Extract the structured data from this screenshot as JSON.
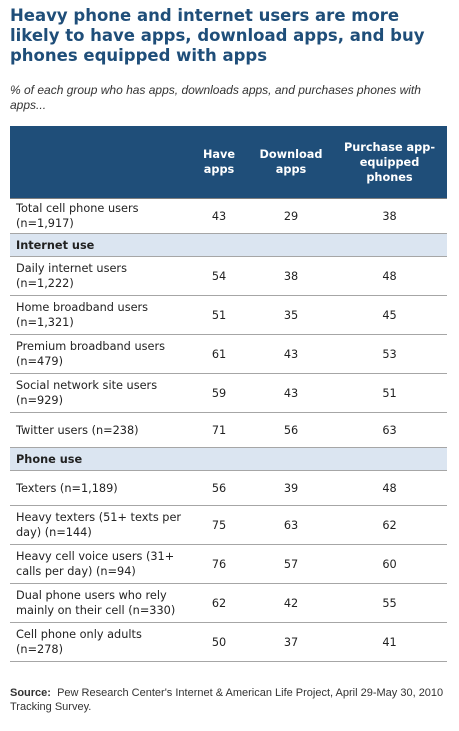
{
  "title": "Heavy phone and internet users are more likely to have apps, download apps, and buy phones equipped with apps",
  "subtitle": "% of each group who has apps, downloads apps, and purchases phones with apps...",
  "source_label": "Source:",
  "source_text": "Pew Research Center's Internet & American Life Project, April 29-May 30, 2010 Tracking Survey.",
  "chart_data": {
    "type": "table",
    "columns": [
      "",
      "Have apps",
      "Download apps",
      "Purchase app-equipped phones"
    ],
    "rows": [
      {
        "label": "Total cell phone users (n=1,917)",
        "values": [
          43,
          29,
          38
        ]
      },
      {
        "section": "Internet use"
      },
      {
        "label": "Daily internet users (n=1,222)",
        "values": [
          54,
          38,
          48
        ]
      },
      {
        "label": "Home broadband users (n=1,321)",
        "values": [
          51,
          35,
          45
        ]
      },
      {
        "label": "Premium broadband users (n=479)",
        "values": [
          61,
          43,
          53
        ]
      },
      {
        "label": "Social network site users (n=929)",
        "values": [
          59,
          43,
          51
        ]
      },
      {
        "label": "Twitter users (n=238)",
        "values": [
          71,
          56,
          63
        ]
      },
      {
        "section": "Phone use"
      },
      {
        "label": "Texters (n=1,189)",
        "values": [
          56,
          39,
          48
        ]
      },
      {
        "label": "Heavy texters (51+ texts per day) (n=144)",
        "values": [
          75,
          63,
          62
        ]
      },
      {
        "label": "Heavy cell voice users (31+ calls per day) (n=94)",
        "values": [
          76,
          57,
          60
        ]
      },
      {
        "label": "Dual phone users who rely mainly on their cell (n=330)",
        "values": [
          62,
          42,
          55
        ]
      },
      {
        "label": "Cell phone only adults (n=278)",
        "values": [
          50,
          37,
          41
        ]
      }
    ]
  }
}
